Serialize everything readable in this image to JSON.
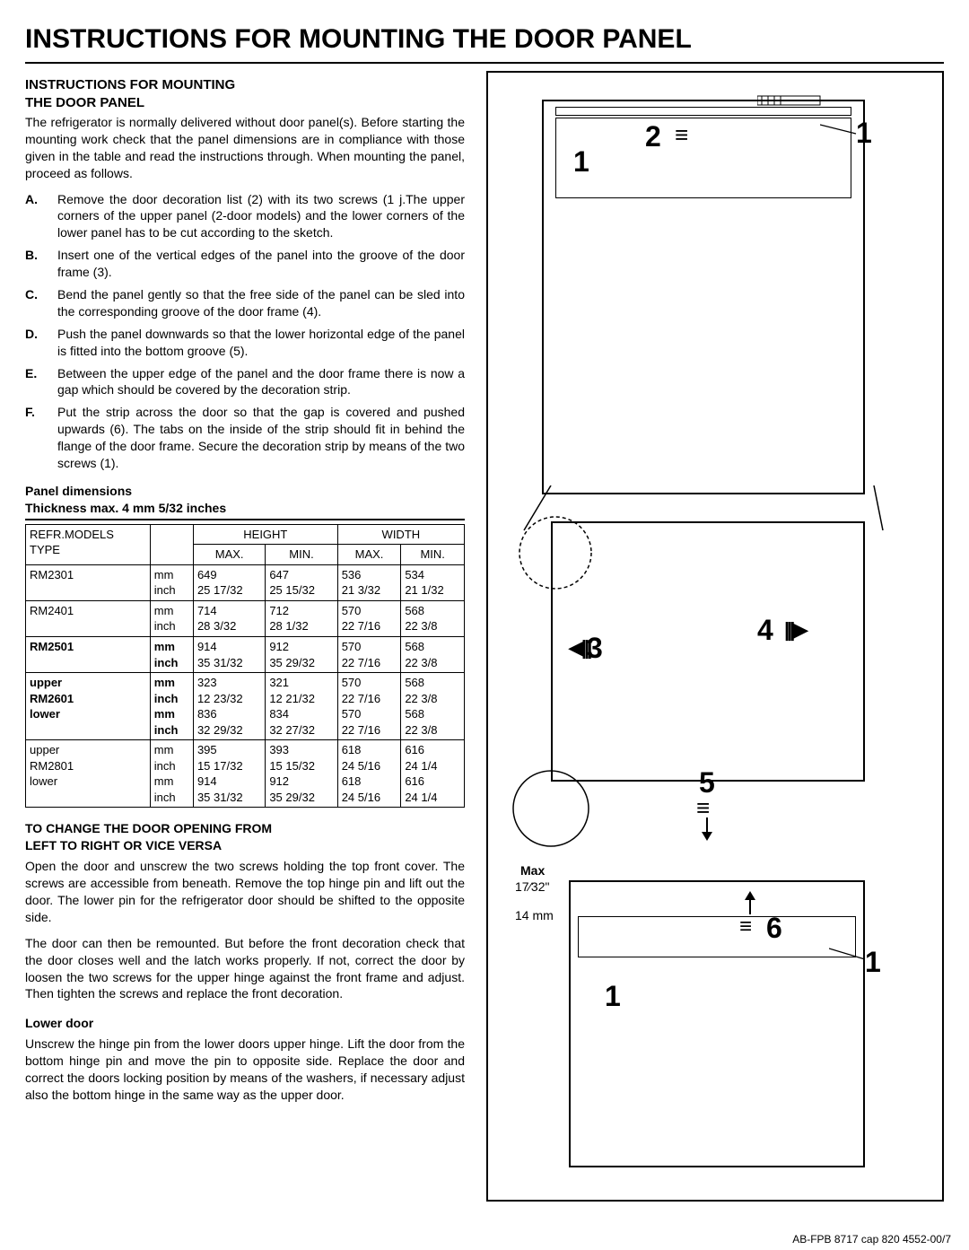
{
  "title": "INSTRUCTIONS FOR MOUNTING THE DOOR PANEL",
  "section1_heading_l1": "INSTRUCTIONS FOR MOUNTING",
  "section1_heading_l2": "THE DOOR PANEL",
  "intro": "The refrigerator is normally delivered without door panel(s). Before starting the mounting work check that the panel dimensions are in compliance with those given in the table and read the instructions through. When mounting the panel, proceed as follows.",
  "steps": [
    {
      "label": "A.",
      "text": "Remove the door decoration list (2) with its two screws (1 j.The upper corners of the upper panel (2-door models) and the lower corners of the lower panel has to be cut according to the sketch."
    },
    {
      "label": "B.",
      "text": "Insert one of the vertical edges of the panel into the groove of the door frame (3)."
    },
    {
      "label": "C.",
      "text": "Bend the panel gently so that the free side of the panel can be sled into the corresponding groove of the door frame (4)."
    },
    {
      "label": "D.",
      "text": "Push the panel downwards so that the lower horizontal edge of the panel is fitted into the bottom groove (5)."
    },
    {
      "label": "E.",
      "text": "Between the upper edge of the panel and the door frame there is now a gap which should be covered by the decoration strip."
    },
    {
      "label": "F.",
      "text": "Put the strip across the door so that the gap is covered and pushed upwards (6). The tabs on the inside of the strip should fit in behind the flange of the door frame. Secure the decoration strip by means of the two screws (1)."
    }
  ],
  "tbl_title": "Panel dimensions",
  "tbl_sub": "Thickness max. 4 mm 5/32 inches",
  "table": {
    "header1": [
      "REFR.MODELS",
      "",
      "HEIGHT",
      "",
      "WIDTH",
      ""
    ],
    "header2": [
      "TYPE",
      "",
      "MAX.",
      "MIN.",
      "MAX.",
      "MIN."
    ],
    "rows": [
      {
        "bold": false,
        "cells": [
          "RM2301",
          "mm\ninch",
          "649\n25 17/32",
          "647\n25 15/32",
          "536\n21 3/32",
          "534\n21 1/32"
        ]
      },
      {
        "bold": false,
        "cells": [
          "RM2401",
          "mm\ninch",
          "714\n28 3/32",
          "712\n28 1/32",
          "570\n22 7/16",
          "568\n22 3/8"
        ]
      },
      {
        "bold": true,
        "cells": [
          "RM2501",
          "mm\ninch",
          "914\n35 31/32",
          "912\n35 29/32",
          "570\n22 7/16",
          "568\n22 3/8"
        ]
      },
      {
        "bold": true,
        "cells": [
          "upper\nRM2601\nlower",
          "mm\ninch\nmm\ninch",
          "323\n12 23/32\n836\n32 29/32",
          "321\n12 21/32\n834\n32 27/32",
          "570\n22 7/16\n570\n22 7/16",
          "568\n22 3/8\n568\n22 3/8"
        ]
      },
      {
        "bold": false,
        "cells": [
          "upper\nRM2801\nlower",
          "mm\ninch\nmm\ninch",
          "395\n15 17/32\n914\n35 31/32",
          "393\n15 15/32\n912\n35 29/32",
          "618\n24 5/16\n618\n24 5/16",
          "616\n24 1/4\n616\n24 1/4"
        ]
      }
    ]
  },
  "change_heading_l1": "TO CHANGE THE DOOR OPENING FROM",
  "change_heading_l2": "LEFT TO RIGHT OR VICE VERSA",
  "change_para1": "Open the door and unscrew the two screws holding the top front cover. The screws are accessible from beneath. Remove the top hinge pin and lift out the door. The lower pin for the refrigerator door should be shifted to the opposite side.",
  "change_para2": "The door can then be remounted. But before the front decoration check that the door closes well and the latch works properly. If not, correct the door by loosen the two screws for the upper hinge against the front frame and adjust. Then tighten the screws and replace the front decoration.",
  "lower_door_h": "Lower door",
  "lower_door_p": "Unscrew the hinge pin from the lower doors upper hinge. Lift the door from the bottom hinge pin and move the pin to opposite side. Replace the door and correct the doors locking position by means of the washers, if necessary adjust also the bottom hinge in the same way as the upper door.",
  "footer": "AB-FPB 8717 cap 820 4552-00/7",
  "diagram": {
    "labels": {
      "n1": "1",
      "n2": "2",
      "n3": "3",
      "n4": "4",
      "n5": "5",
      "n6": "6"
    },
    "max_label": "Max",
    "inch_label": "17⁄32\"",
    "mm_label": "14 mm",
    "screw_icon": "≡"
  }
}
